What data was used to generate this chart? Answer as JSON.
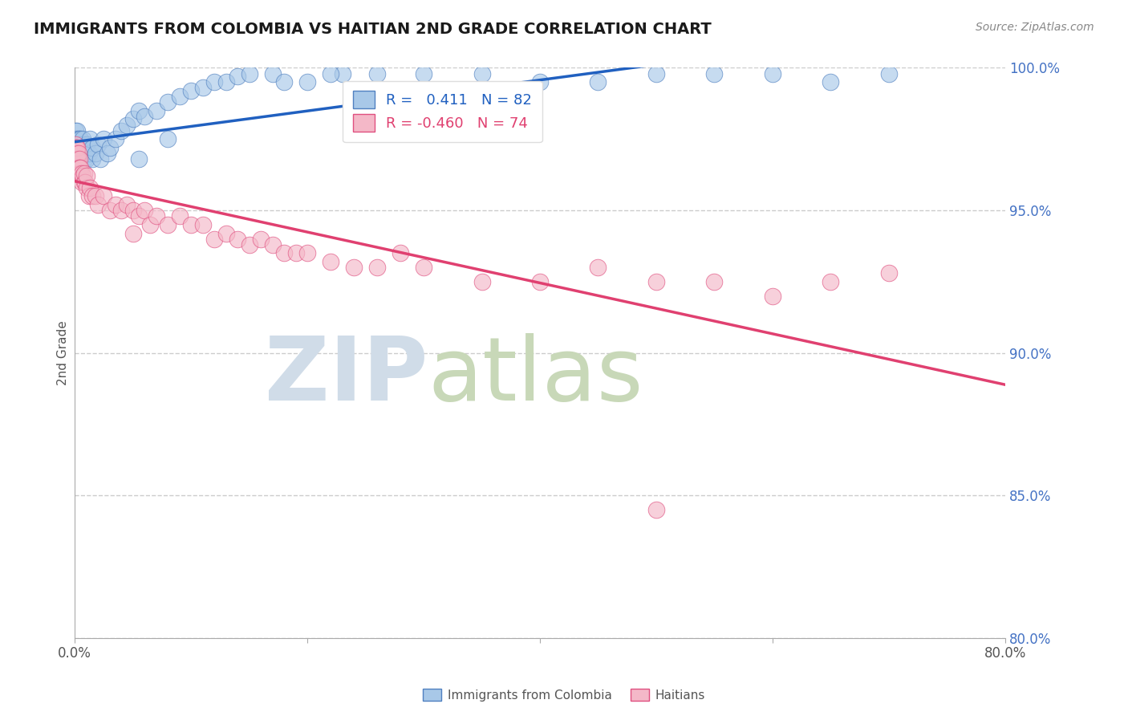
{
  "title": "IMMIGRANTS FROM COLOMBIA VS HAITIAN 2ND GRADE CORRELATION CHART",
  "source_text": "Source: ZipAtlas.com",
  "ylabel": "2nd Grade",
  "xlim": [
    0.0,
    80.0
  ],
  "ylim": [
    80.0,
    100.0
  ],
  "y_ticks": [
    80.0,
    85.0,
    90.0,
    95.0,
    100.0
  ],
  "y_tick_labels": [
    "80.0%",
    "85.0%",
    "90.0%",
    "95.0%",
    "100.0%"
  ],
  "colombia_R": 0.411,
  "colombia_N": 82,
  "haiti_R": -0.46,
  "haiti_N": 74,
  "colombia_color": "#a8c8e8",
  "haiti_color": "#f4b8c8",
  "colombia_edge_color": "#5080c0",
  "haiti_edge_color": "#e05080",
  "colombia_line_color": "#2060c0",
  "haiti_line_color": "#e04070",
  "colombia_scatter_x": [
    0.05,
    0.05,
    0.05,
    0.05,
    0.08,
    0.08,
    0.1,
    0.1,
    0.1,
    0.12,
    0.12,
    0.15,
    0.15,
    0.15,
    0.18,
    0.18,
    0.2,
    0.2,
    0.2,
    0.25,
    0.25,
    0.28,
    0.3,
    0.3,
    0.35,
    0.35,
    0.4,
    0.4,
    0.45,
    0.5,
    0.5,
    0.6,
    0.6,
    0.7,
    0.7,
    0.8,
    0.8,
    0.9,
    1.0,
    1.0,
    1.2,
    1.3,
    1.5,
    1.5,
    1.8,
    2.0,
    2.2,
    2.5,
    2.8,
    3.0,
    3.5,
    4.0,
    4.5,
    5.0,
    5.5,
    6.0,
    7.0,
    8.0,
    9.0,
    10.0,
    11.0,
    12.0,
    13.0,
    14.0,
    15.0,
    17.0,
    20.0,
    23.0,
    26.0,
    30.0,
    35.0,
    40.0,
    45.0,
    50.0,
    55.0,
    60.0,
    65.0,
    70.0,
    18.0,
    22.0,
    8.0,
    5.5
  ],
  "colombia_scatter_y": [
    97.2,
    97.5,
    96.8,
    97.0,
    97.8,
    97.3,
    96.5,
    97.0,
    97.5,
    96.8,
    97.2,
    97.5,
    97.0,
    96.5,
    97.2,
    97.8,
    96.8,
    97.0,
    97.3,
    97.5,
    97.0,
    97.2,
    96.5,
    97.0,
    97.2,
    96.8,
    97.0,
    97.5,
    96.8,
    97.2,
    97.5,
    97.0,
    97.3,
    97.2,
    97.5,
    96.8,
    97.0,
    97.2,
    96.8,
    97.3,
    97.0,
    97.5,
    96.8,
    97.2,
    97.0,
    97.3,
    96.8,
    97.5,
    97.0,
    97.2,
    97.5,
    97.8,
    98.0,
    98.2,
    98.5,
    98.3,
    98.5,
    98.8,
    99.0,
    99.2,
    99.3,
    99.5,
    99.5,
    99.7,
    99.8,
    99.8,
    99.5,
    99.8,
    99.8,
    99.8,
    99.8,
    99.5,
    99.5,
    99.8,
    99.8,
    99.8,
    99.5,
    99.8,
    99.5,
    99.8,
    97.5,
    96.8
  ],
  "haiti_scatter_x": [
    0.05,
    0.05,
    0.08,
    0.08,
    0.1,
    0.1,
    0.12,
    0.15,
    0.15,
    0.18,
    0.18,
    0.2,
    0.2,
    0.25,
    0.25,
    0.3,
    0.3,
    0.35,
    0.35,
    0.4,
    0.4,
    0.5,
    0.5,
    0.6,
    0.6,
    0.7,
    0.8,
    0.8,
    0.9,
    1.0,
    1.0,
    1.2,
    1.3,
    1.5,
    1.8,
    2.0,
    2.5,
    3.0,
    3.5,
    4.0,
    4.5,
    5.0,
    5.5,
    6.0,
    6.5,
    7.0,
    8.0,
    9.0,
    10.0,
    11.0,
    12.0,
    13.0,
    14.0,
    15.0,
    16.0,
    17.0,
    18.0,
    19.0,
    20.0,
    22.0,
    24.0,
    26.0,
    28.0,
    30.0,
    35.0,
    40.0,
    45.0,
    50.0,
    55.0,
    60.0,
    65.0,
    70.0,
    50.0,
    5.0
  ],
  "haiti_scatter_y": [
    97.0,
    97.3,
    96.8,
    97.2,
    97.0,
    96.5,
    97.2,
    96.8,
    97.0,
    96.5,
    97.0,
    96.8,
    97.2,
    96.5,
    96.8,
    96.5,
    97.0,
    96.3,
    96.5,
    96.8,
    96.5,
    96.3,
    96.5,
    96.0,
    96.3,
    96.2,
    96.0,
    96.3,
    96.0,
    95.8,
    96.2,
    95.5,
    95.8,
    95.5,
    95.5,
    95.2,
    95.5,
    95.0,
    95.2,
    95.0,
    95.2,
    95.0,
    94.8,
    95.0,
    94.5,
    94.8,
    94.5,
    94.8,
    94.5,
    94.5,
    94.0,
    94.2,
    94.0,
    93.8,
    94.0,
    93.8,
    93.5,
    93.5,
    93.5,
    93.2,
    93.0,
    93.0,
    93.5,
    93.0,
    92.5,
    92.5,
    93.0,
    92.5,
    92.5,
    92.0,
    92.5,
    92.8,
    84.5,
    94.2
  ],
  "watermark_zip": "ZIP",
  "watermark_atlas": "atlas",
  "legend_colombia_label": "Immigrants from Colombia",
  "legend_haiti_label": "Haitians",
  "background_color": "#ffffff",
  "grid_color": "#cccccc",
  "tick_color": "#4472c4"
}
